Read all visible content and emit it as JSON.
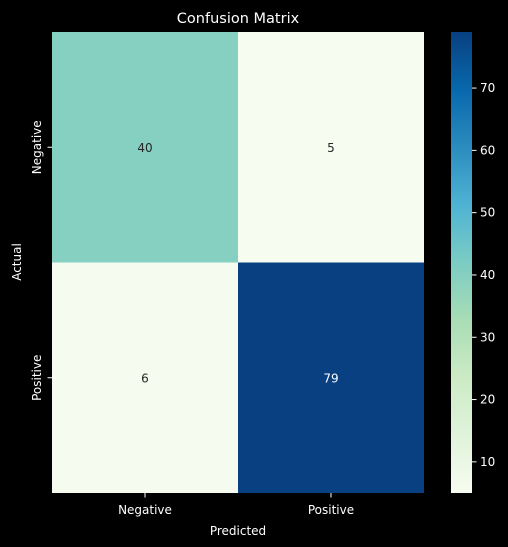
{
  "chart_data": {
    "type": "heatmap",
    "title": "Confusion Matrix",
    "xlabel": "Predicted",
    "ylabel": "Actual",
    "x_categories": [
      "Negative",
      "Positive"
    ],
    "y_categories": [
      "Negative",
      "Positive"
    ],
    "values": [
      [
        40,
        5
      ],
      [
        6,
        79
      ]
    ],
    "colormap": "GnBu",
    "color_range": [
      5,
      79
    ],
    "colorbar_ticks": [
      "10",
      "20",
      "30",
      "40",
      "50",
      "60",
      "70"
    ],
    "colors": {
      "background": "#000000",
      "foreground": "#ffffff",
      "cell_text_dark": "#262626",
      "cell_text_light": "#ffffff"
    }
  }
}
